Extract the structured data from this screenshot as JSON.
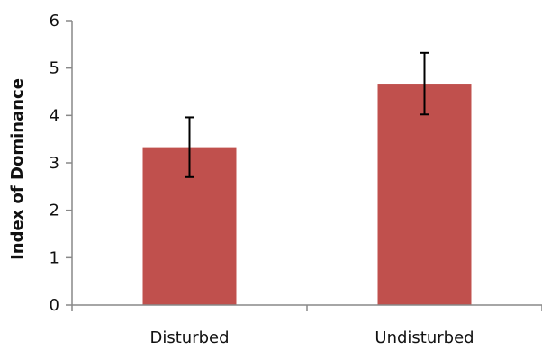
{
  "chart_data": {
    "type": "bar",
    "title": "",
    "xlabel": "",
    "ylabel": "Index of Dominance",
    "categories": [
      "Disturbed",
      "Undisturbed"
    ],
    "values": [
      3.33,
      4.67
    ],
    "error": [
      0.63,
      0.65
    ],
    "ylim": [
      0,
      6
    ],
    "yticks": [
      "0",
      "1",
      "2",
      "3",
      "4",
      "5",
      "6"
    ],
    "grid": false,
    "legend": "none",
    "bar_color": "#c0504d",
    "axis_color": "#888888",
    "errorbar_color": "#000000"
  }
}
